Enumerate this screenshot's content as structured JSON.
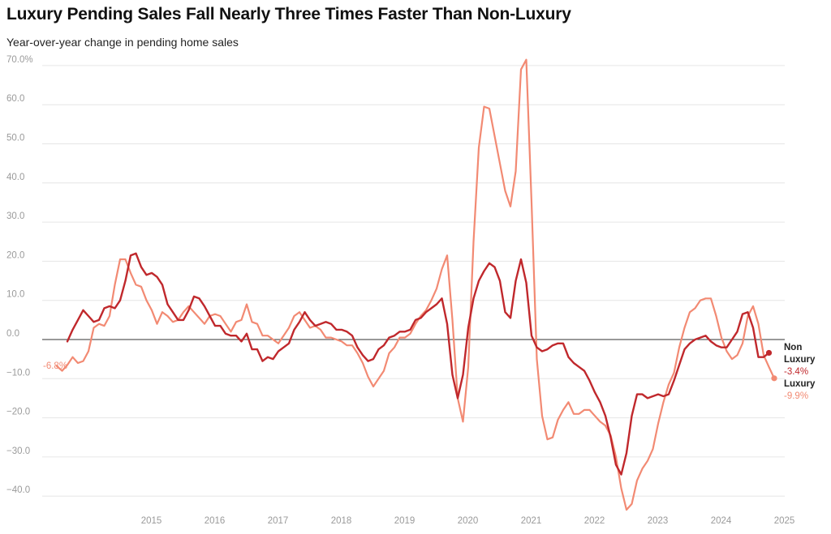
{
  "title": "Luxury Pending Sales Fall Nearly Three Times Faster Than Non-Luxury",
  "subtitle": "Year-over-year change in pending home sales",
  "chart_data": {
    "type": "line",
    "title": "Luxury Pending Sales Fall Nearly Three Times Faster Than Non-Luxury",
    "subtitle": "Year-over-year change in pending home sales",
    "xlabel": "",
    "ylabel": "",
    "y_unit": "%",
    "ylim": [
      -43.5,
      71.5
    ],
    "xlim": [
      "2014-01",
      "2025-06"
    ],
    "grid": true,
    "legend": "inline labels at line ends",
    "yticks": [
      70,
      60,
      50,
      40,
      30,
      20,
      10,
      0,
      -10,
      -20,
      -30,
      -40
    ],
    "ytick_labels": [
      "70.0%",
      "60.0",
      "50.0",
      "40.0",
      "30.0",
      "20.0",
      "10.0",
      "0.0",
      "−10.0",
      "−20.0",
      "−30.0",
      "−40.0"
    ],
    "xticks": [
      "2015",
      "2016",
      "2017",
      "2018",
      "2019",
      "2020",
      "2021",
      "2022",
      "2023",
      "2024",
      "2025"
    ],
    "start_annotation": "-6.8%",
    "series": [
      {
        "name": "Non Luxury",
        "name_lines": [
          "Non",
          "Luxury"
        ],
        "color": "#c0282c",
        "end_label": "-3.4%",
        "start": "2014-03",
        "values": [
          -0.5,
          2.5,
          5,
          7.5,
          6,
          4.5,
          5,
          8,
          8.5,
          8,
          10,
          15,
          21.5,
          22,
          18.5,
          16.5,
          17,
          16,
          14,
          9,
          7,
          5,
          5,
          7.5,
          11,
          10.5,
          8.5,
          6,
          3.5,
          3.5,
          1.5,
          1,
          1,
          -0.5,
          1.5,
          -2.5,
          -2.5,
          -5.5,
          -4.5,
          -5,
          -3,
          -2,
          -1,
          2.5,
          4.5,
          7,
          5,
          3.5,
          4,
          4.5,
          4,
          2.5,
          2.5,
          2,
          1,
          -2,
          -4,
          -5.5,
          -5,
          -2.5,
          -1.5,
          0.5,
          1,
          2,
          2,
          2.5,
          5,
          5.5,
          7,
          8,
          9,
          10.5,
          4,
          -9,
          -15,
          -9,
          3,
          10.5,
          15,
          17.5,
          19.5,
          18.5,
          15,
          7,
          5.5,
          15,
          20.5,
          14.5,
          1,
          -2,
          -3,
          -2.5,
          -1.5,
          -1,
          -1,
          -4.5,
          -6,
          -7,
          -8,
          -10.5,
          -13.5,
          -16,
          -19.5,
          -25,
          -32,
          -34.5,
          -29,
          -19.5,
          -14,
          -14,
          -15,
          -14.5,
          -14,
          -14.5,
          -14,
          -10.5,
          -6.5,
          -2.5,
          -1,
          0,
          0.5,
          1,
          -0.5,
          -1.5,
          -2,
          -2,
          0,
          2,
          6.5,
          7,
          3,
          -4.5,
          -4.5,
          -3.4
        ]
      },
      {
        "name": "Luxury",
        "name_lines": [
          "Luxury"
        ],
        "color": "#f28a73",
        "end_label": "-9.9%",
        "start": "2014-01",
        "values": [
          -6.8,
          -8,
          -6.5,
          -4.5,
          -6,
          -5.5,
          -3,
          3,
          4,
          3.5,
          6,
          14,
          20.5,
          20.5,
          17,
          14,
          13.5,
          10,
          7.5,
          4,
          7,
          6,
          4.5,
          5,
          7,
          8.5,
          7,
          5.5,
          4,
          6,
          6.5,
          6,
          4,
          2,
          4.5,
          5,
          9,
          4.5,
          4,
          1,
          1,
          0,
          -1,
          1,
          3,
          6,
          7,
          5,
          3,
          3.5,
          2.5,
          0.5,
          0.5,
          0,
          -0.5,
          -1.5,
          -1.5,
          -3.5,
          -6,
          -9.5,
          -12,
          -10,
          -8,
          -3.5,
          -2,
          0.5,
          0.5,
          1.5,
          4,
          6,
          7.5,
          10,
          13,
          18,
          21.5,
          5,
          -15,
          -21,
          -7,
          25,
          49,
          59.5,
          59,
          52,
          45,
          38,
          34,
          43,
          69,
          71.5,
          35,
          -5,
          -19.5,
          -25.5,
          -25,
          -20.5,
          -18,
          -16,
          -19,
          -19,
          -18,
          -18,
          -19.5,
          -21,
          -22,
          -24.5,
          -30,
          -38,
          -43.5,
          -42,
          -36,
          -33,
          -31,
          -28,
          -21.5,
          -16,
          -11.5,
          -8.5,
          -2,
          3,
          7,
          8,
          10,
          10.5,
          10.5,
          6,
          0.5,
          -3,
          -5,
          -4,
          -1,
          6,
          8.5,
          4,
          -4,
          -7,
          -9.9
        ]
      }
    ]
  }
}
